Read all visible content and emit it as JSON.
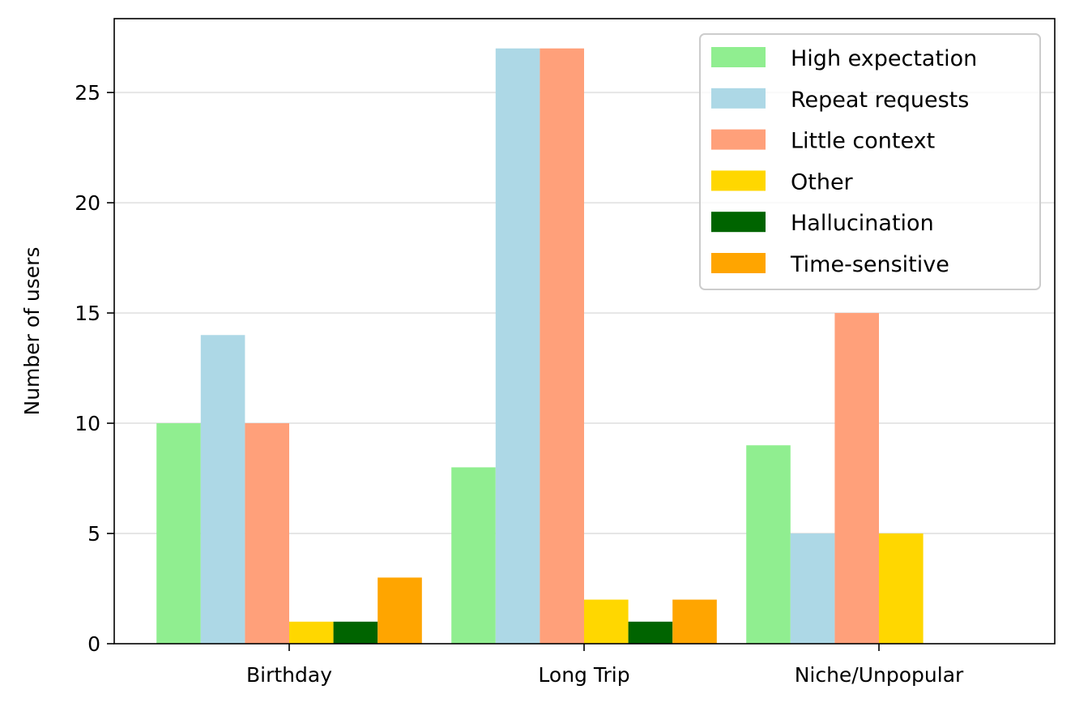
{
  "chart_data": {
    "type": "bar",
    "categories": [
      "Birthday",
      "Long Trip",
      "Niche/Unpopular"
    ],
    "series": [
      {
        "name": "High expectation",
        "values": [
          10,
          8,
          9
        ],
        "color": "#90ee90"
      },
      {
        "name": "Repeat requests",
        "values": [
          14,
          27,
          5
        ],
        "color": "#add8e6"
      },
      {
        "name": "Little context",
        "values": [
          10,
          27,
          15
        ],
        "color": "#ffa07a"
      },
      {
        "name": "Other",
        "values": [
          1,
          2,
          5
        ],
        "color": "#ffd700"
      },
      {
        "name": "Hallucination",
        "values": [
          1,
          1,
          0
        ],
        "color": "#006400"
      },
      {
        "name": "Time-sensitive",
        "values": [
          3,
          2,
          0
        ],
        "color": "#ffa500"
      }
    ],
    "ylabel": "Number of users",
    "ylim": [
      0,
      28.35
    ],
    "yticks": [
      0,
      5,
      10,
      15,
      20,
      25
    ],
    "grid": "y",
    "legend_position": "top-right"
  }
}
